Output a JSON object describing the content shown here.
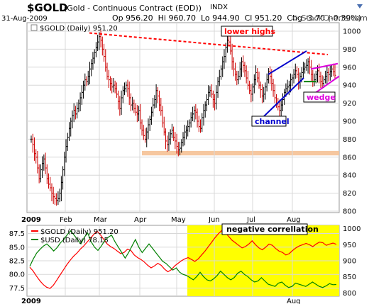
{
  "header": {
    "symbol": "$GOLD",
    "description": "(Gold - Continuous Contract (EOD))",
    "exchange": "INDX",
    "date": "31-Aug-2009",
    "op": "Op 956.20",
    "hi": "Hi 960.70",
    "lo": "Lo 944.90",
    "cl": "Cl 951.20",
    "chg": "Chg -3.70 (-0.39%)",
    "brand": "© StockCharts.com"
  },
  "chart_data": [
    {
      "type": "ohlc",
      "legend": "$GOLD (Daily) 951.20",
      "y_axis_side": "right",
      "ylim": [
        800,
        1000
      ],
      "yticks": [
        800,
        820,
        840,
        860,
        880,
        900,
        920,
        940,
        960,
        980,
        1000
      ],
      "x_labels": [
        "2009",
        "Feb",
        "Mar",
        "Apr",
        "May",
        "Jun",
        "Jul",
        "Aug"
      ],
      "grid": true,
      "colors": {
        "bull": "#000000",
        "bear": "#cc0000"
      },
      "series": [
        {
          "name": "$GOLD",
          "values": [
            880,
            874,
            864,
            860,
            848,
            836,
            846,
            853,
            858,
            848,
            836,
            830,
            826,
            820,
            816,
            814,
            812,
            814,
            820,
            832,
            846,
            860,
            872,
            882,
            892,
            900,
            906,
            912,
            908,
            914,
            920,
            926,
            932,
            940,
            946,
            944,
            950,
            958,
            964,
            970,
            976,
            982,
            988,
            994,
            990,
            980,
            972,
            960,
            950,
            946,
            942,
            938,
            940,
            936,
            930,
            922,
            914,
            926,
            934,
            936,
            940,
            936,
            926,
            918,
            920,
            914,
            910,
            908,
            912,
            898,
            890,
            884,
            880,
            888,
            896,
            902,
            910,
            918,
            924,
            934,
            928,
            918,
            912,
            898,
            888,
            878,
            874,
            880,
            886,
            890,
            882,
            878,
            872,
            868,
            870,
            876,
            882,
            888,
            890,
            894,
            898,
            904,
            908,
            912,
            910,
            900,
            894,
            892,
            904,
            912,
            918,
            924,
            932,
            934,
            930,
            924,
            920,
            932,
            944,
            950,
            958,
            966,
            972,
            982,
            990,
            988,
            978,
            966,
            958,
            952,
            946,
            950,
            958,
            966,
            962,
            956,
            948,
            940,
            934,
            930,
            938,
            946,
            954,
            948,
            940,
            935,
            928,
            930,
            938,
            946,
            955,
            950,
            942,
            934,
            926,
            920,
            916,
            912,
            918,
            924,
            932,
            936,
            938,
            940,
            946,
            948,
            952,
            956,
            952,
            944,
            950,
            954,
            958,
            960,
            962,
            966,
            960,
            952,
            944,
            946,
            952,
            956,
            950,
            944,
            942,
            946,
            950,
            954,
            952,
            955,
            958,
            955,
            951
          ]
        }
      ],
      "annotations": [
        {
          "label": "lower highs",
          "color": "#ff0000"
        },
        {
          "label": "channel",
          "color": "#0000cc"
        },
        {
          "label": "wedge",
          "color": "#dd00dd"
        }
      ],
      "support_zone": {
        "low": 862,
        "high": 867,
        "color": "#f6c49a"
      }
    },
    {
      "type": "line",
      "title": "negative correllation",
      "left_ticks": [
        77.5,
        80.0,
        82.5,
        85.0,
        87.5
      ],
      "left_ylim": [
        76.0,
        89.0
      ],
      "right_ticks": [
        800,
        850,
        900,
        950,
        1000
      ],
      "right_ylim": [
        790,
        1010
      ],
      "x_labels": [
        "2009",
        "Feb",
        "Mar",
        "Apr",
        "May",
        "Jun",
        "Jul",
        "Aug"
      ],
      "grid": true,
      "highlight": {
        "from_label": "May",
        "color": "#ffff00"
      },
      "series": [
        {
          "name": "$GOLD (Daily) 951.20",
          "axis": "right",
          "color": "#ff0000",
          "values": [
            880,
            868,
            852,
            838,
            826,
            818,
            814,
            824,
            840,
            856,
            872,
            888,
            902,
            914,
            924,
            936,
            946,
            958,
            970,
            982,
            992,
            980,
            966,
            952,
            944,
            938,
            930,
            922,
            926,
            936,
            932,
            918,
            910,
            904,
            896,
            886,
            878,
            884,
            892,
            886,
            874,
            866,
            872,
            884,
            892,
            900,
            906,
            910,
            904,
            898,
            906,
            918,
            930,
            944,
            958,
            972,
            984,
            994,
            988,
            976,
            964,
            956,
            948,
            940,
            944,
            952,
            962,
            950,
            940,
            934,
            942,
            952,
            948,
            938,
            930,
            926,
            918,
            922,
            932,
            940,
            946,
            950,
            954,
            950,
            944,
            952,
            958,
            956,
            948,
            952,
            955,
            951
          ]
        },
        {
          "name": "$USD (Daily) 78.15",
          "axis": "left",
          "color": "#008000",
          "values": [
            81.5,
            82.8,
            83.9,
            84.6,
            85.2,
            85.6,
            85.0,
            84.3,
            84.9,
            85.8,
            86.4,
            87.3,
            88.0,
            87.2,
            86.4,
            85.6,
            86.8,
            87.6,
            86.0,
            85.0,
            84.4,
            85.2,
            86.2,
            86.8,
            87.2,
            86.0,
            85.0,
            84.0,
            83.0,
            84.0,
            85.2,
            86.4,
            85.0,
            84.0,
            84.8,
            85.6,
            84.8,
            84.0,
            83.2,
            82.4,
            82.0,
            81.4,
            80.8,
            81.2,
            80.4,
            80.0,
            79.8,
            79.4,
            79.0,
            79.6,
            80.4,
            79.6,
            79.0,
            78.8,
            79.2,
            79.8,
            80.6,
            80.0,
            79.4,
            79.0,
            79.4,
            80.2,
            80.6,
            80.0,
            79.6,
            79.0,
            78.6,
            78.8,
            79.4,
            78.8,
            78.2,
            78.0,
            77.8,
            78.4,
            78.6,
            78.0,
            77.6,
            77.8,
            78.4,
            78.2,
            78.0,
            77.8,
            78.2,
            78.6,
            78.2,
            77.8,
            77.6,
            77.9,
            78.3,
            78.1,
            78.15
          ]
        }
      ]
    }
  ]
}
